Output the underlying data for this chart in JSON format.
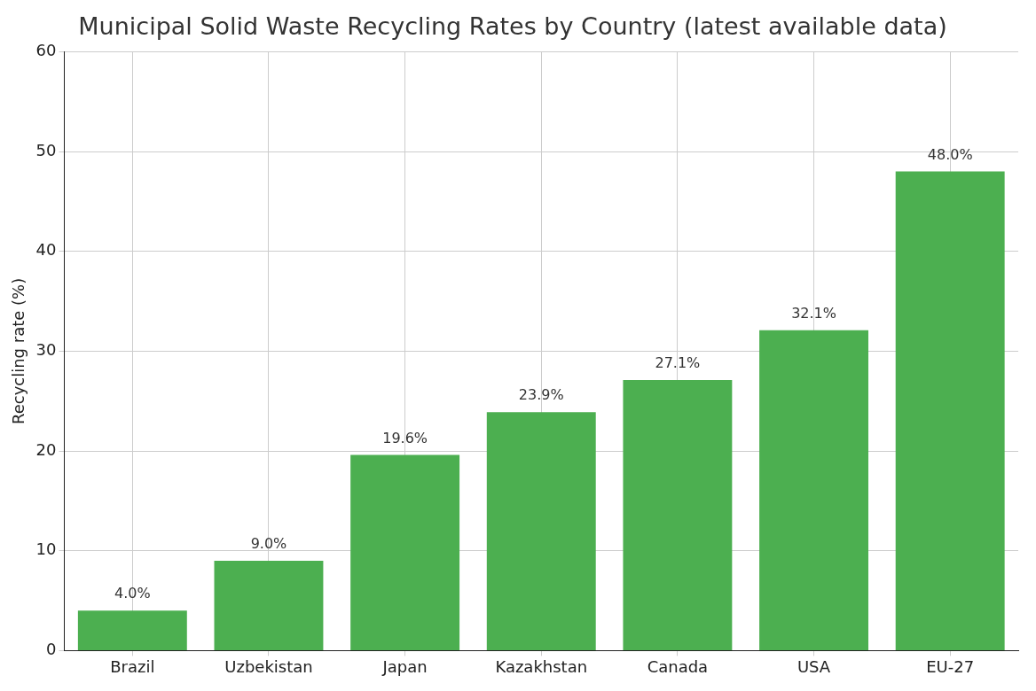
{
  "chart_data": {
    "type": "bar",
    "title": "Municipal Solid Waste Recycling Rates by Country (latest available data)",
    "ylabel": "Recycling rate (%)",
    "categories": [
      "Brazil",
      "Uzbekistan",
      "Japan",
      "Kazakhstan",
      "Canada",
      "USA",
      "EU-27"
    ],
    "values": [
      4.0,
      9.0,
      19.6,
      23.9,
      27.1,
      32.1,
      48.0
    ],
    "value_labels": [
      "4.0%",
      "9.0%",
      "19.6%",
      "23.9%",
      "27.1%",
      "32.1%",
      "48.0%"
    ],
    "color": "#4caf50",
    "ylim": [
      0,
      60
    ],
    "yticks": [
      0,
      10,
      20,
      30,
      40,
      50,
      60
    ],
    "grid": true
  }
}
